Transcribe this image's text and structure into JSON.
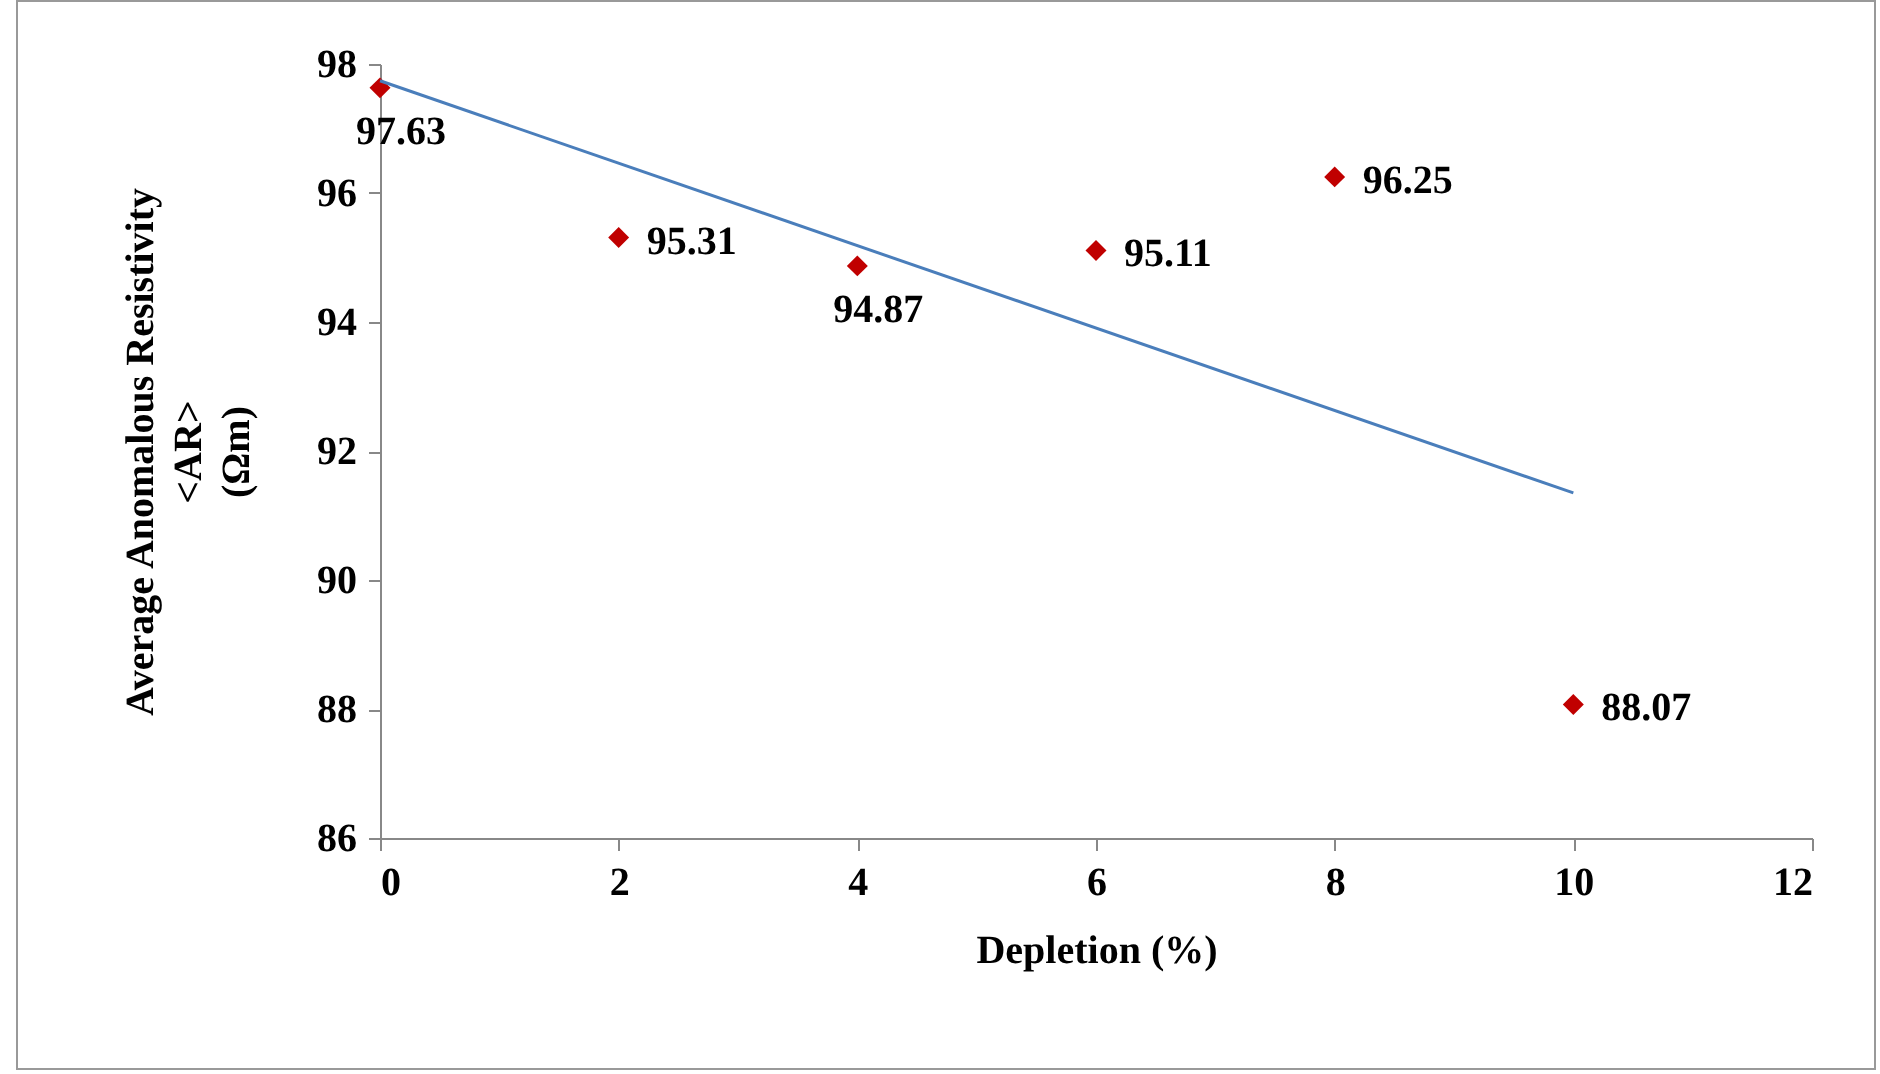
{
  "chart_data": {
    "type": "scatter",
    "xlabel": "Depletion (%)",
    "ylabel": "Average Anomalous Resistivity\n<AR>\n(Ωm)",
    "xlim": [
      0,
      12
    ],
    "ylim": [
      86,
      98
    ],
    "xticks": [
      0,
      2,
      4,
      6,
      8,
      10,
      12
    ],
    "yticks": [
      86,
      88,
      90,
      92,
      94,
      96,
      98
    ],
    "grid": false,
    "series": [
      {
        "color": "#c00000",
        "marker": "diamond",
        "x": [
          0,
          2,
          4,
          6,
          8,
          10
        ],
        "values": [
          97.63,
          95.31,
          94.87,
          95.11,
          96.25,
          88.07
        ],
        "value_labels": [
          "97.63",
          "95.31",
          "94.87",
          "95.11",
          "96.25",
          "88.07"
        ]
      },
      {
        "type": "line",
        "color": "#4a7ebb",
        "x": [
          0,
          10
        ],
        "values": [
          97.74,
          91.35
        ]
      }
    ]
  }
}
